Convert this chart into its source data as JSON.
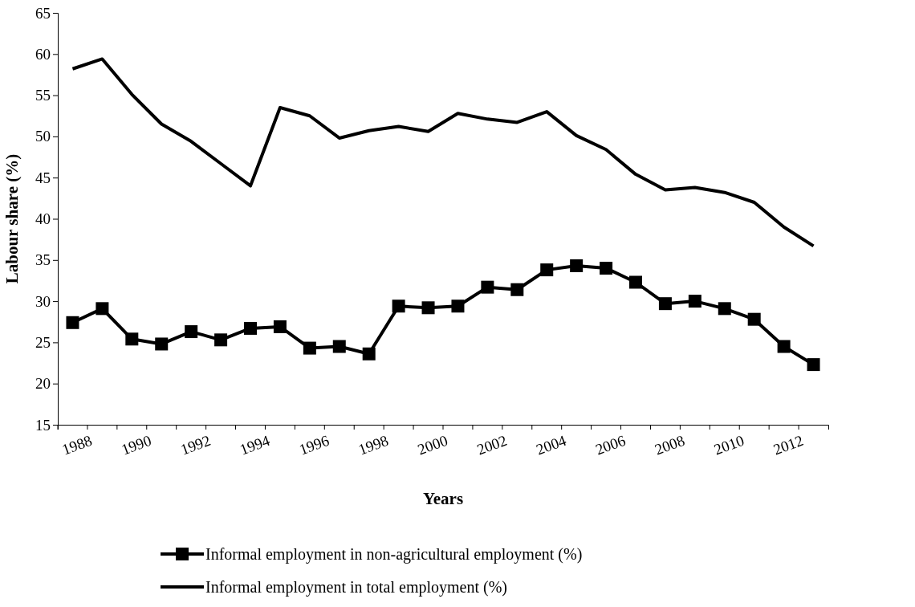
{
  "chart_data": {
    "type": "line",
    "xlabel": "Years",
    "ylabel": "Labour share (%)",
    "categories": [
      "1988",
      null,
      "1990",
      null,
      "1992",
      null,
      "1994",
      null,
      "1996",
      null,
      "1998",
      null,
      "2000",
      null,
      "2002",
      null,
      "2004",
      null,
      "2006",
      null,
      "2008",
      null,
      "2010",
      null,
      "2012",
      null
    ],
    "series": [
      {
        "name": "Informal employment in non-agricultural employment (%)",
        "color": "#000000",
        "marker": "square",
        "values": [
          27.4,
          29.1,
          25.4,
          24.8,
          26.3,
          25.3,
          26.7,
          26.9,
          24.3,
          24.5,
          23.6,
          29.4,
          29.2,
          29.4,
          31.7,
          31.4,
          33.8,
          34.3,
          34.0,
          32.3,
          29.7,
          30.0,
          29.1,
          27.8,
          24.5,
          22.3
        ]
      },
      {
        "name": "Informal employment in total employment (%)",
        "color": "#000000",
        "marker": "none",
        "values": [
          58.2,
          59.4,
          55.1,
          51.5,
          49.4,
          46.7,
          44.0,
          53.5,
          52.5,
          49.8,
          50.7,
          51.2,
          50.6,
          52.8,
          52.1,
          51.7,
          53.0,
          50.1,
          48.4,
          45.4,
          43.5,
          43.8,
          43.2,
          42.0,
          39.0,
          36.7
        ]
      }
    ],
    "ylim": [
      15,
      65
    ],
    "yticks": [
      15,
      20,
      25,
      30,
      35,
      40,
      45,
      50,
      55,
      60,
      65
    ],
    "grid": false,
    "legend": "bottom",
    "line_style": "solid"
  }
}
